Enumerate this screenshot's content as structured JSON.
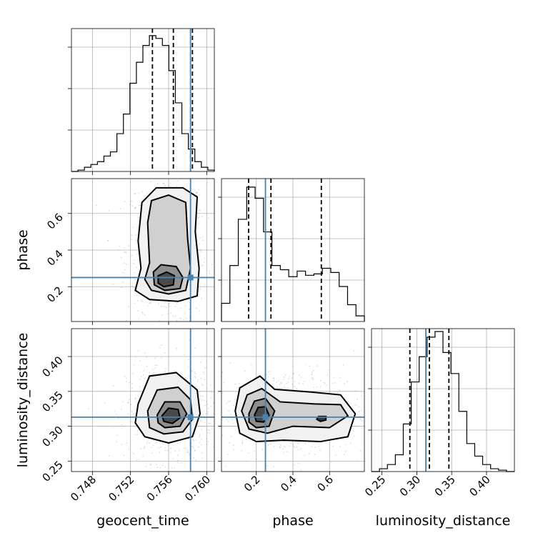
{
  "chart_data": {
    "type": "corner",
    "parameters": [
      "geocent_time",
      "phase",
      "luminosity_distance"
    ],
    "truths": {
      "geocent_time": 0.7583,
      "phase": 0.25,
      "luminosity_distance": 0.313
    },
    "axes": {
      "geocent_time": {
        "range": [
          0.7458,
          0.7608
        ],
        "ticks": [
          "0.748",
          "0.752",
          "0.756",
          "0.760"
        ]
      },
      "phase": {
        "range": [
          0.01,
          0.79
        ],
        "ticks": [
          "0.2",
          "0.4",
          "0.6"
        ]
      },
      "luminosity_distance": {
        "range": [
          0.235,
          0.44
        ],
        "ticks_x": [
          "0.25",
          "0.30",
          "0.35",
          "0.40"
        ],
        "ticks_y": [
          "0.25",
          "0.30",
          "0.35",
          "0.40"
        ]
      }
    },
    "marginals": {
      "geocent_time": {
        "bins": [
          0.7458,
          0.7608
        ],
        "counts": [
          0.0,
          0.01,
          0.03,
          0.05,
          0.07,
          0.11,
          0.14,
          0.27,
          0.41,
          0.63,
          0.78,
          0.9,
          0.97,
          0.95,
          0.9,
          0.72,
          0.49,
          0.27,
          0.16,
          0.07,
          0.03,
          0.01
        ],
        "quantiles": [
          0.7543,
          0.7565,
          0.7585
        ]
      },
      "phase": {
        "bins": [
          0.01,
          0.79
        ],
        "counts": [
          0.13,
          0.4,
          0.73,
          0.96,
          0.88,
          0.64,
          0.4,
          0.37,
          0.32,
          0.36,
          0.33,
          0.34,
          0.38,
          0.35,
          0.25,
          0.12,
          0.04
        ],
        "quantiles": [
          0.158,
          0.28,
          0.555
        ]
      },
      "luminosity_distance": {
        "bins": [
          0.235,
          0.44
        ],
        "counts": [
          0.0,
          0.02,
          0.05,
          0.12,
          0.34,
          0.64,
          0.82,
          0.96,
          1.0,
          0.85,
          0.7,
          0.43,
          0.2,
          0.11,
          0.05,
          0.02,
          0.01,
          0.0
        ],
        "quantiles": [
          0.29,
          0.318,
          0.346
        ]
      }
    },
    "joint_contours": {
      "geocent_time_vs_phase": [
        [
          [
            0.7531,
            0.3
          ],
          [
            0.7528,
            0.45
          ],
          [
            0.7532,
            0.66
          ],
          [
            0.7547,
            0.74
          ],
          [
            0.7575,
            0.74
          ],
          [
            0.759,
            0.69
          ],
          [
            0.7588,
            0.5
          ],
          [
            0.7592,
            0.3
          ],
          [
            0.759,
            0.15
          ],
          [
            0.757,
            0.12
          ],
          [
            0.754,
            0.13
          ],
          [
            0.7525,
            0.18
          ]
        ],
        [
          [
            0.754,
            0.33
          ],
          [
            0.7538,
            0.55
          ],
          [
            0.7542,
            0.67
          ],
          [
            0.756,
            0.7
          ],
          [
            0.7578,
            0.66
          ],
          [
            0.758,
            0.46
          ],
          [
            0.7583,
            0.3
          ],
          [
            0.7578,
            0.18
          ],
          [
            0.756,
            0.16
          ],
          [
            0.7542,
            0.18
          ],
          [
            0.7535,
            0.24
          ]
        ],
        [
          [
            0.7544,
            0.28
          ],
          [
            0.7552,
            0.32
          ],
          [
            0.7568,
            0.31
          ],
          [
            0.7575,
            0.25
          ],
          [
            0.7572,
            0.19
          ],
          [
            0.7556,
            0.18
          ],
          [
            0.7545,
            0.21
          ]
        ],
        [
          [
            0.7549,
            0.26
          ],
          [
            0.7558,
            0.28
          ],
          [
            0.7566,
            0.26
          ],
          [
            0.7565,
            0.21
          ],
          [
            0.7555,
            0.2
          ],
          [
            0.7549,
            0.22
          ]
        ]
      ],
      "geocent_time_vs_luminosity_distance": [
        [
          [
            0.7528,
            0.332
          ],
          [
            0.754,
            0.372
          ],
          [
            0.7568,
            0.377
          ],
          [
            0.759,
            0.352
          ],
          [
            0.7593,
            0.318
          ],
          [
            0.7585,
            0.285
          ],
          [
            0.756,
            0.276
          ],
          [
            0.7535,
            0.285
          ],
          [
            0.7525,
            0.305
          ]
        ],
        [
          [
            0.7538,
            0.322
          ],
          [
            0.7548,
            0.352
          ],
          [
            0.757,
            0.356
          ],
          [
            0.7583,
            0.338
          ],
          [
            0.7585,
            0.31
          ],
          [
            0.7575,
            0.292
          ],
          [
            0.7555,
            0.289
          ],
          [
            0.754,
            0.298
          ]
        ],
        [
          [
            0.7548,
            0.316
          ],
          [
            0.7556,
            0.335
          ],
          [
            0.7572,
            0.335
          ],
          [
            0.7579,
            0.318
          ],
          [
            0.7572,
            0.3
          ],
          [
            0.7556,
            0.298
          ],
          [
            0.7549,
            0.305
          ]
        ],
        [
          [
            0.7553,
            0.315
          ],
          [
            0.756,
            0.326
          ],
          [
            0.757,
            0.324
          ],
          [
            0.7572,
            0.312
          ],
          [
            0.7564,
            0.304
          ],
          [
            0.7555,
            0.307
          ]
        ]
      ],
      "phase_vs_luminosity_distance": [
        [
          [
            0.085,
            0.322
          ],
          [
            0.11,
            0.355
          ],
          [
            0.22,
            0.372
          ],
          [
            0.3,
            0.353
          ],
          [
            0.5,
            0.349
          ],
          [
            0.66,
            0.345
          ],
          [
            0.74,
            0.318
          ],
          [
            0.7,
            0.285
          ],
          [
            0.55,
            0.278
          ],
          [
            0.35,
            0.28
          ],
          [
            0.2,
            0.278
          ],
          [
            0.11,
            0.29
          ]
        ],
        [
          [
            0.12,
            0.322
          ],
          [
            0.15,
            0.345
          ],
          [
            0.23,
            0.354
          ],
          [
            0.33,
            0.335
          ],
          [
            0.52,
            0.332
          ],
          [
            0.66,
            0.331
          ],
          [
            0.7,
            0.315
          ],
          [
            0.6,
            0.298
          ],
          [
            0.4,
            0.3
          ],
          [
            0.26,
            0.29
          ],
          [
            0.16,
            0.296
          ]
        ],
        [
          [
            0.16,
            0.318
          ],
          [
            0.19,
            0.336
          ],
          [
            0.25,
            0.34
          ],
          [
            0.3,
            0.322
          ],
          [
            0.27,
            0.3
          ],
          [
            0.2,
            0.298
          ],
          [
            0.16,
            0.306
          ]
        ],
        [
          [
            0.19,
            0.316
          ],
          [
            0.21,
            0.327
          ],
          [
            0.25,
            0.328
          ],
          [
            0.27,
            0.316
          ],
          [
            0.24,
            0.306
          ],
          [
            0.2,
            0.307
          ]
        ],
        [
          [
            0.53,
            0.31
          ],
          [
            0.54,
            0.314
          ],
          [
            0.58,
            0.314
          ],
          [
            0.58,
            0.309
          ],
          [
            0.55,
            0.307
          ]
        ]
      ]
    }
  }
}
